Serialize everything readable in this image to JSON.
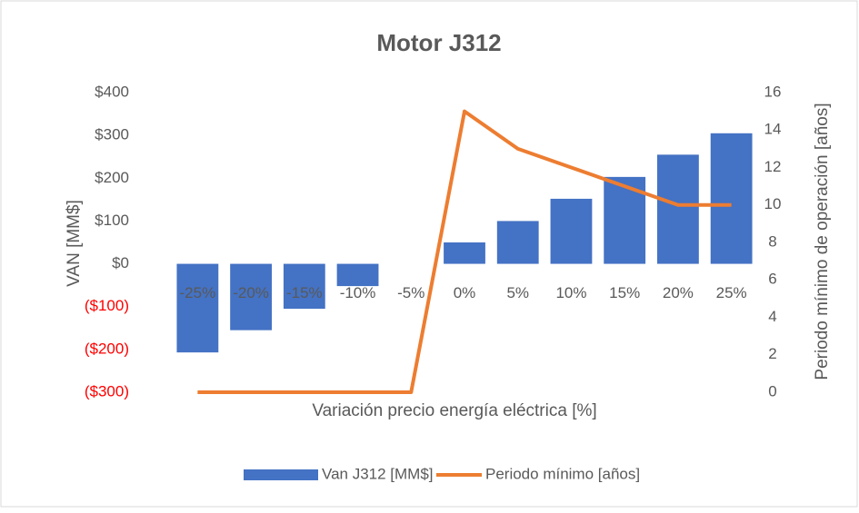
{
  "chart_data": {
    "type": "bar_line",
    "title": "Motor J312",
    "x_label": "Variación precio energía eléctrica [%]",
    "y_label": "VAN [MM$]",
    "y2_label": "Periodo mínimo de operación [años]",
    "categories": [
      "-25%",
      "-20%",
      "-15%",
      "-10%",
      "-5%",
      "0%",
      "5%",
      "10%",
      "15%",
      "20%",
      "25%"
    ],
    "series": [
      {
        "name": "Van J312 [MM$]",
        "type": "bar",
        "color": "#4472c4",
        "values": [
          -207,
          -155,
          -105,
          -52,
          0,
          50,
          100,
          152,
          203,
          255,
          305
        ]
      },
      {
        "name": "Periodo mínimo [años]",
        "type": "line",
        "color": "#ed7d31",
        "axis": "y2",
        "values": [
          0,
          0,
          0,
          0,
          0,
          15,
          13,
          12,
          11,
          10,
          10
        ]
      }
    ],
    "ylim": [
      -300,
      400
    ],
    "yticks": [
      {
        "value": -300,
        "label": "($300)"
      },
      {
        "value": -200,
        "label": "($200)"
      },
      {
        "value": -100,
        "label": "($100)"
      },
      {
        "value": 0,
        "label": "$0"
      },
      {
        "value": 100,
        "label": "$100"
      },
      {
        "value": 200,
        "label": "$200"
      },
      {
        "value": 300,
        "label": "$300"
      },
      {
        "value": 400,
        "label": "$400"
      }
    ],
    "negative_tick_color": "#ff0000",
    "y2lim": [
      0,
      16
    ],
    "y2ticks": [
      0,
      2,
      4,
      6,
      8,
      10,
      12,
      14,
      16
    ],
    "legend": "bottom"
  }
}
